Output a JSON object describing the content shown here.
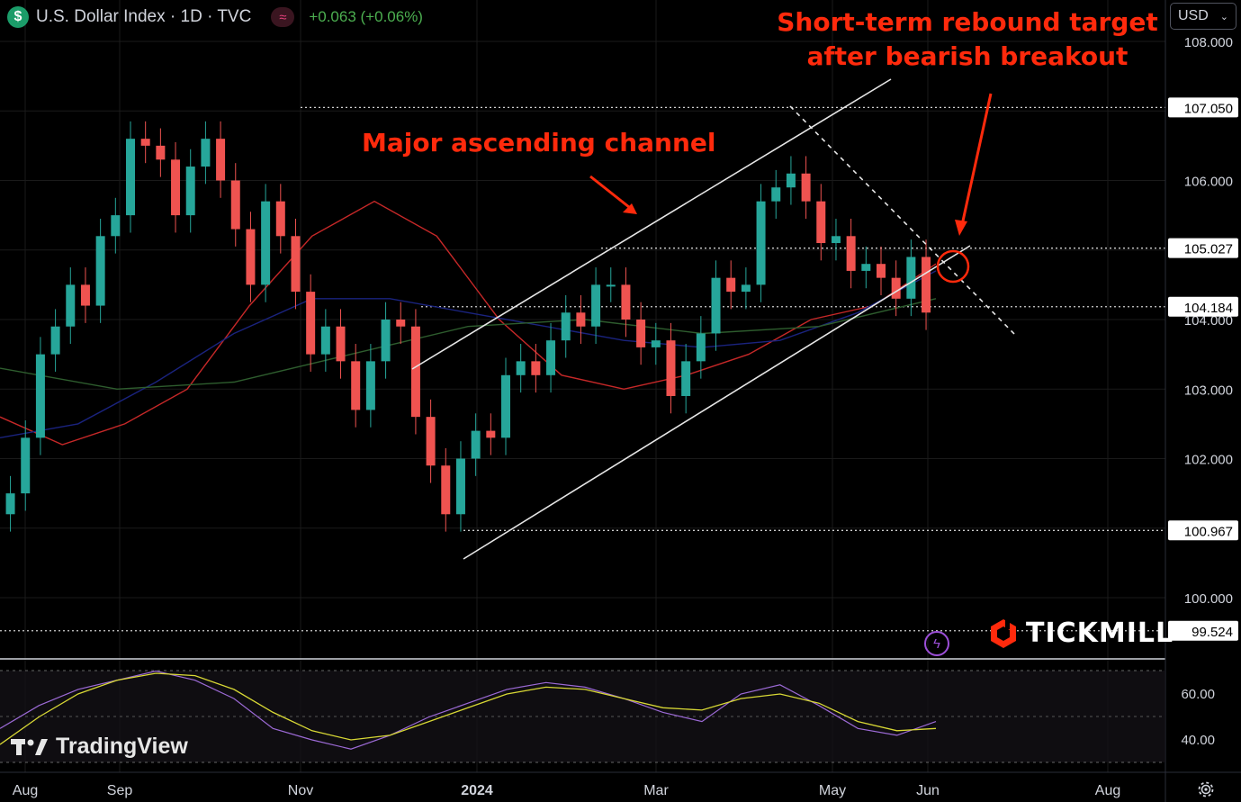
{
  "header": {
    "title": "U.S. Dollar Index · 1D · TVC",
    "change": "+0.063 (+0.06%)",
    "currency": "USD"
  },
  "annotations": {
    "channel_label": "Major ascending channel",
    "target_label_line1": "Short-term rebound target",
    "target_label_line2": "after bearish breakout"
  },
  "branding": {
    "broker": "TICKMILL",
    "platform": "TradingView"
  },
  "colors": {
    "up": "#26a69a",
    "down": "#ef5350",
    "accent": "#ff2a0c",
    "ma_red": "#c62828",
    "ma_blue": "#1a237e",
    "ma_green": "#2e5d2e",
    "rsi": "#9c6ad6",
    "rsi_ma": "#d8d835"
  },
  "chart_data": {
    "type": "candlestick",
    "instrument": "U.S. Dollar Index",
    "interval": "1D",
    "x_labels": [
      "Aug",
      "Sep",
      "Nov",
      "2024",
      "Mar",
      "May",
      "Jun",
      "Aug"
    ],
    "y_ticks": [
      100.0,
      101.0,
      102.0,
      103.0,
      104.0,
      105.0,
      106.0,
      107.0,
      108.0
    ],
    "y_tick_labels": [
      "100.000",
      "102.000",
      "103.000",
      "104.000",
      "106.000",
      "108.000"
    ],
    "ylim": [
      99.2,
      108.1
    ],
    "price_levels": [
      {
        "label": "107.050",
        "value": 107.05
      },
      {
        "label": "105.027",
        "value": 105.027
      },
      {
        "label": "104.184",
        "value": 104.184
      },
      {
        "label": "100.967",
        "value": 100.967
      },
      {
        "label": "99.524",
        "value": 99.524
      }
    ],
    "series": [
      {
        "name": "close",
        "values": [
          101.5,
          102.3,
          103.5,
          103.9,
          104.5,
          104.2,
          105.2,
          105.5,
          106.6,
          106.5,
          106.3,
          105.5,
          106.2,
          106.6,
          106.0,
          105.3,
          104.5,
          105.7,
          105.2,
          104.4,
          103.5,
          103.9,
          103.4,
          102.7,
          103.4,
          104.0,
          103.9,
          102.6,
          101.9,
          101.2,
          102.0,
          102.4,
          102.3,
          103.2,
          103.4,
          103.2,
          103.7,
          104.1,
          103.9,
          104.5,
          104.5,
          104.0,
          103.6,
          103.7,
          102.9,
          103.4,
          103.8,
          104.6,
          104.4,
          104.5,
          105.7,
          105.9,
          106.1,
          105.7,
          105.1,
          105.2,
          104.7,
          104.8,
          104.6,
          104.3,
          104.9,
          104.1
        ],
        "x_index": [
          2,
          8,
          14,
          20,
          26,
          32,
          38,
          44,
          50,
          56,
          62,
          68,
          74,
          80,
          86,
          92,
          98,
          104,
          110,
          116,
          122,
          128,
          134,
          140,
          146,
          152,
          158,
          164,
          170,
          176,
          182,
          188,
          194,
          200,
          206,
          212,
          218,
          224,
          230,
          236,
          242,
          248,
          254,
          260,
          266,
          272,
          278,
          284,
          290,
          296,
          302,
          308,
          314,
          320,
          326,
          332,
          338,
          344,
          350,
          356,
          362,
          368
        ]
      },
      {
        "name": "MA red",
        "values": [
          102.6,
          102.2,
          102.5,
          103.0,
          104.2,
          105.2,
          105.7,
          105.2,
          104.0,
          103.2,
          103.0,
          103.2,
          103.5,
          104.0,
          104.2,
          104.8
        ]
      },
      {
        "name": "MA blue",
        "values": [
          102.3,
          102.5,
          103.1,
          103.8,
          104.3,
          104.3,
          104.1,
          103.9,
          103.7,
          103.6,
          103.7,
          104.1,
          104.7
        ]
      },
      {
        "name": "MA green",
        "values": [
          103.3,
          103.0,
          103.1,
          103.5,
          103.9,
          104.0,
          103.8,
          103.9,
          104.3
        ]
      }
    ],
    "rsi": {
      "yticks": [
        40.0,
        60.0
      ],
      "ylim": [
        29,
        73
      ],
      "values": [
        45,
        55,
        62,
        66,
        70,
        66,
        58,
        45,
        40,
        36,
        42,
        50,
        56,
        62,
        65,
        63,
        58,
        52,
        48,
        60,
        64,
        55,
        45,
        42,
        48
      ],
      "ma_values": [
        38,
        50,
        60,
        66,
        69,
        68,
        62,
        52,
        44,
        40,
        42,
        48,
        54,
        60,
        63,
        62,
        58,
        54,
        53,
        58,
        60,
        56,
        48,
        44,
        45
      ]
    }
  }
}
